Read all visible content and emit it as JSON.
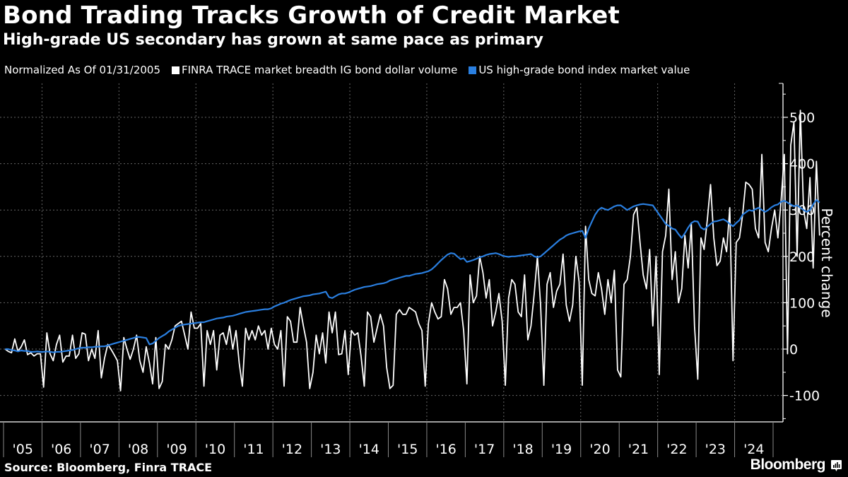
{
  "header": {
    "title": "Bond Trading Tracks Growth of Credit Market",
    "subtitle": "High-grade US secondary has grown at same pace as primary"
  },
  "legend": {
    "note": "Normalized As Of 01/31/2005",
    "items": [
      {
        "label": "FINRA TRACE market breadth IG bond dollar volume",
        "color": "#ffffff"
      },
      {
        "label": "US high-grade bond index market value",
        "color": "#2a7fe0"
      }
    ]
  },
  "footer": {
    "source": "Source: Bloomberg, Finra TRACE",
    "brand": "Bloomberg",
    "brand_icon": "bloomberg-chart-icon"
  },
  "chart_data": {
    "type": "line",
    "title": "Bond Trading Tracks Growth of Credit Market",
    "subtitle": "High-grade US secondary has grown at same pace as primary",
    "xlabel": "",
    "ylabel": "Percent change",
    "ylim": [
      -150,
      560
    ],
    "yticks": [
      -100,
      0,
      100,
      200,
      300,
      400,
      500
    ],
    "xlim": [
      "2005-01",
      "2024-12"
    ],
    "xtick_labels": [
      "'05",
      "'06",
      "'07",
      "'08",
      "'09",
      "'10",
      "'11",
      "'12",
      "'13",
      "'14",
      "'15",
      "'16",
      "'17",
      "'18",
      "'19",
      "'20",
      "'21",
      "'22",
      "'23",
      "'24"
    ],
    "grid": true,
    "axis_side": "right",
    "legend_position": "top-left",
    "frequency": "monthly",
    "start": "2005-01",
    "series": [
      {
        "name": "FINRA TRACE market breadth IG bond dollar volume",
        "color": "#ffffff",
        "values": [
          0,
          -5,
          -8,
          22,
          -5,
          5,
          20,
          -12,
          -8,
          -15,
          -10,
          -10,
          -82,
          35,
          -10,
          -25,
          10,
          30,
          -28,
          -15,
          -15,
          30,
          -20,
          -10,
          35,
          32,
          -25,
          0,
          -20,
          40,
          -62,
          -20,
          10,
          0,
          -12,
          -25,
          -90,
          25,
          0,
          -22,
          0,
          30,
          -25,
          -50,
          5,
          -30,
          -75,
          25,
          -85,
          -70,
          10,
          0,
          20,
          50,
          55,
          60,
          30,
          0,
          80,
          45,
          45,
          55,
          -80,
          40,
          10,
          40,
          -45,
          30,
          35,
          10,
          50,
          0,
          40,
          -30,
          -80,
          45,
          20,
          40,
          20,
          50,
          30,
          40,
          0,
          45,
          10,
          0,
          40,
          -80,
          70,
          60,
          15,
          15,
          90,
          50,
          15,
          -85,
          -50,
          30,
          -10,
          35,
          -30,
          80,
          35,
          80,
          -12,
          -10,
          40,
          -55,
          40,
          30,
          35,
          -15,
          -80,
          80,
          70,
          15,
          45,
          75,
          50,
          -40,
          -85,
          -78,
          75,
          85,
          75,
          75,
          90,
          85,
          80,
          55,
          40,
          -80,
          55,
          100,
          80,
          65,
          70,
          150,
          130,
          75,
          90,
          90,
          100,
          40,
          -75,
          160,
          100,
          115,
          200,
          165,
          110,
          150,
          50,
          80,
          120,
          60,
          -78,
          110,
          150,
          140,
          80,
          70,
          160,
          20,
          50,
          120,
          200,
          95,
          -78,
          140,
          165,
          90,
          125,
          140,
          205,
          95,
          60,
          95,
          200,
          145,
          -78,
          265,
          150,
          120,
          115,
          165,
          130,
          75,
          150,
          100,
          170,
          -45,
          -60,
          140,
          150,
          200,
          290,
          305,
          230,
          160,
          130,
          215,
          50,
          200,
          -55,
          210,
          245,
          345,
          150,
          210,
          100,
          130,
          245,
          175,
          270,
          50,
          -65,
          240,
          215,
          280,
          355,
          240,
          180,
          190,
          240,
          210,
          305,
          -25,
          230,
          240,
          290,
          360,
          355,
          345,
          260,
          240,
          420,
          230,
          210,
          260,
          300,
          240,
          320,
          420,
          -10,
          440,
          490,
          200,
          515,
          300,
          260,
          370,
          175,
          405,
          245
        ]
      },
      {
        "name": "US high-grade bond index market value",
        "color": "#2a7fe0",
        "values": [
          0,
          0,
          -2,
          -3,
          -5,
          -3,
          -4,
          -4,
          -6,
          -6,
          -5,
          -6,
          -6,
          -5,
          -6,
          -7,
          -6,
          -6,
          -5,
          -4,
          -3,
          -2,
          0,
          2,
          3,
          3,
          4,
          4,
          5,
          5,
          6,
          6,
          8,
          10,
          12,
          14,
          16,
          18,
          20,
          22,
          24,
          26,
          26,
          25,
          24,
          10,
          12,
          18,
          24,
          28,
          32,
          38,
          42,
          46,
          50,
          52,
          53,
          54,
          55,
          56,
          57,
          58,
          58,
          60,
          62,
          64,
          66,
          67,
          68,
          70,
          71,
          72,
          74,
          76,
          78,
          80,
          81,
          82,
          83,
          84,
          85,
          86,
          86,
          88,
          92,
          95,
          98,
          100,
          103,
          106,
          108,
          110,
          112,
          114,
          115,
          116,
          118,
          119,
          120,
          122,
          124,
          112,
          110,
          114,
          118,
          120,
          120,
          122,
          125,
          128,
          130,
          132,
          134,
          135,
          136,
          138,
          140,
          141,
          142,
          144,
          148,
          150,
          152,
          154,
          156,
          158,
          158,
          160,
          162,
          163,
          164,
          166,
          168,
          172,
          178,
          185,
          192,
          198,
          204,
          207,
          206,
          200,
          194,
          196,
          188,
          190,
          192,
          195,
          198,
          200,
          203,
          205,
          206,
          207,
          205,
          202,
          200,
          199,
          200,
          200,
          201,
          202,
          203,
          204,
          205,
          200,
          198,
          200,
          206,
          212,
          218,
          224,
          230,
          236,
          240,
          245,
          248,
          250,
          252,
          254,
          255,
          240,
          260,
          275,
          290,
          300,
          305,
          302,
          300,
          304,
          308,
          310,
          310,
          305,
          300,
          304,
          308,
          310,
          312,
          313,
          312,
          311,
          310,
          300,
          290,
          280,
          270,
          266,
          260,
          258,
          248,
          240,
          250,
          262,
          272,
          276,
          275,
          262,
          258,
          264,
          270,
          275,
          276,
          278,
          280,
          276,
          270,
          265,
          272,
          278,
          290,
          295,
          300,
          298,
          302,
          305,
          300,
          296,
          300,
          306,
          310,
          312,
          318,
          320,
          316,
          312,
          308,
          310,
          305,
          300,
          296,
          300,
          312,
          322,
          316
        ]
      }
    ]
  }
}
